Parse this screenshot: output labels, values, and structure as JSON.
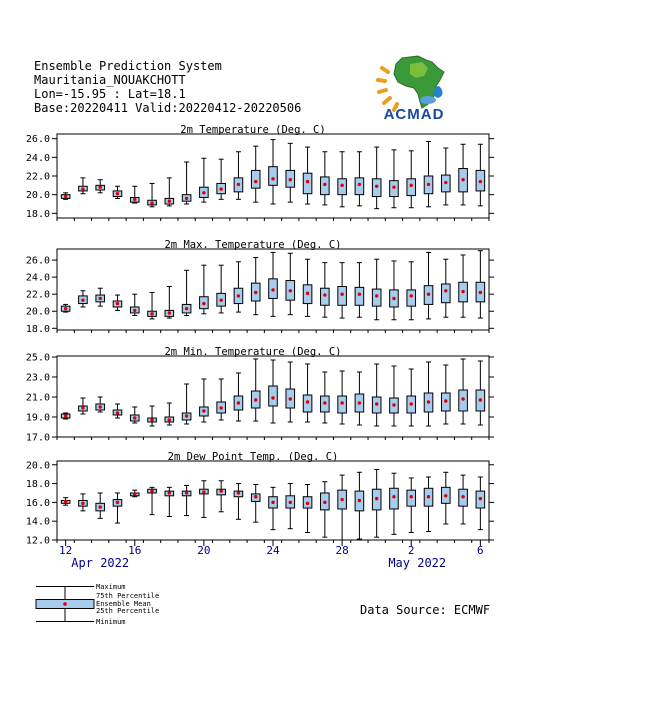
{
  "header": {
    "line1": "Ensemble Prediction System",
    "line2": "Mauritania_NOUAKCHOTT",
    "line3": "Lon=-15.95 : Lat=18.1",
    "line4": "Base:20220411 Valid:20220412-20220506"
  },
  "logo_text": "ACMAD",
  "source": "Data Source: ECMWF",
  "x_axis": {
    "tick_labels": [
      "12",
      "16",
      "20",
      "24",
      "28",
      "2",
      "6"
    ],
    "month_labels": [
      "Apr 2022",
      "May 2022"
    ]
  },
  "legend": {
    "items": [
      "Maximum",
      "75th Percentile",
      "Ensemble Mean",
      "25th Percentile",
      "Minimum"
    ]
  },
  "colors": {
    "box_fill": "#a8ccee",
    "mean": "#dd0000",
    "axis_labels": "#00008b"
  },
  "chart_data": [
    {
      "type": "box",
      "title": "2m Temperature (Deg. C)",
      "yticks": [
        18.0,
        20.0,
        22.0,
        24.0,
        26.0
      ],
      "ylim": [
        17.5,
        26.5
      ],
      "days": [
        "Apr 12",
        "Apr 13",
        "Apr 14",
        "Apr 15",
        "Apr 16",
        "Apr 17",
        "Apr 18",
        "Apr 19",
        "Apr 20",
        "Apr 21",
        "Apr 22",
        "Apr 23",
        "Apr 24",
        "Apr 25",
        "Apr 26",
        "Apr 27",
        "Apr 28",
        "Apr 29",
        "Apr 30",
        "May 1",
        "May 2",
        "May 3",
        "May 4",
        "May 5",
        "May 6"
      ],
      "min": [
        19.5,
        20.1,
        20.2,
        19.6,
        19.1,
        18.7,
        18.8,
        19.0,
        19.2,
        19.5,
        19.5,
        19.2,
        19.0,
        19.2,
        19.0,
        18.9,
        18.7,
        18.8,
        18.5,
        18.6,
        18.6,
        18.7,
        18.9,
        18.9,
        18.8
      ],
      "q25": [
        19.6,
        20.4,
        20.5,
        19.8,
        19.2,
        18.9,
        19.0,
        19.3,
        19.7,
        20.1,
        20.3,
        20.7,
        21.0,
        20.8,
        20.1,
        20.0,
        20.0,
        20.0,
        19.8,
        19.8,
        19.9,
        20.1,
        20.3,
        20.3,
        20.4
      ],
      "mean": [
        19.8,
        20.6,
        20.8,
        20.1,
        19.5,
        19.1,
        19.3,
        19.6,
        20.2,
        20.6,
        21.1,
        21.4,
        21.7,
        21.6,
        21.4,
        21.1,
        21.0,
        21.1,
        20.9,
        20.8,
        21.0,
        21.1,
        21.3,
        21.6,
        21.4
      ],
      "q75": [
        20.0,
        20.9,
        21.0,
        20.4,
        19.7,
        19.4,
        19.6,
        20.0,
        20.8,
        21.2,
        21.8,
        22.6,
        23.0,
        22.6,
        22.3,
        21.9,
        21.7,
        21.8,
        21.7,
        21.5,
        21.7,
        22.0,
        22.1,
        22.8,
        22.6
      ],
      "max": [
        20.2,
        21.8,
        21.6,
        20.9,
        20.9,
        21.2,
        21.8,
        23.5,
        23.9,
        23.8,
        24.6,
        25.2,
        25.9,
        25.5,
        25.1,
        24.6,
        24.6,
        24.6,
        25.1,
        24.8,
        24.7,
        25.7,
        25.0,
        25.4,
        25.4
      ]
    },
    {
      "type": "box",
      "title": "2m Max. Temperature (Deg. C)",
      "yticks": [
        18.0,
        20.0,
        22.0,
        24.0,
        26.0
      ],
      "ylim": [
        17.8,
        27.3
      ],
      "days": [
        "Apr 12",
        "Apr 13",
        "Apr 14",
        "Apr 15",
        "Apr 16",
        "Apr 17",
        "Apr 18",
        "Apr 19",
        "Apr 20",
        "Apr 21",
        "Apr 22",
        "Apr 23",
        "Apr 24",
        "Apr 25",
        "Apr 26",
        "Apr 27",
        "Apr 28",
        "Apr 29",
        "Apr 30",
        "May 1",
        "May 2",
        "May 3",
        "May 4",
        "May 5",
        "May 6"
      ],
      "min": [
        19.9,
        20.5,
        20.6,
        20.1,
        19.5,
        19.1,
        19.2,
        19.5,
        19.7,
        19.8,
        19.9,
        19.6,
        19.4,
        19.6,
        19.4,
        19.3,
        19.2,
        19.3,
        19.0,
        19.0,
        19.0,
        19.1,
        19.3,
        19.3,
        19.2
      ],
      "q25": [
        20.0,
        20.9,
        21.1,
        20.5,
        19.8,
        19.4,
        19.4,
        19.8,
        20.3,
        20.6,
        20.9,
        21.2,
        21.5,
        21.3,
        20.9,
        20.7,
        20.7,
        20.7,
        20.6,
        20.5,
        20.6,
        20.8,
        21.0,
        21.1,
        21.1
      ],
      "mean": [
        20.3,
        21.3,
        21.5,
        20.9,
        20.1,
        19.7,
        19.8,
        20.3,
        20.9,
        21.3,
        21.8,
        22.2,
        22.5,
        22.4,
        22.1,
        21.9,
        22.0,
        22.0,
        21.8,
        21.5,
        21.8,
        22.0,
        22.4,
        22.3,
        22.2
      ],
      "q75": [
        20.6,
        21.8,
        21.9,
        21.2,
        20.5,
        20.0,
        20.1,
        20.8,
        21.7,
        22.1,
        22.7,
        23.3,
        23.8,
        23.6,
        23.1,
        22.7,
        22.9,
        22.8,
        22.6,
        22.5,
        22.5,
        23.0,
        23.2,
        23.4,
        23.4
      ],
      "max": [
        20.8,
        22.4,
        22.7,
        21.9,
        22.0,
        22.2,
        22.9,
        24.8,
        25.4,
        25.4,
        25.8,
        26.3,
        26.9,
        26.8,
        26.1,
        25.7,
        25.7,
        25.7,
        26.1,
        25.9,
        25.8,
        26.9,
        26.1,
        26.6,
        27.1
      ]
    },
    {
      "type": "box",
      "title": "2m Min. Temperature (Deg. C)",
      "yticks": [
        17.0,
        19.0,
        21.0,
        23.0,
        25.0
      ],
      "ylim": [
        17.0,
        25.1
      ],
      "days": [
        "Apr 12",
        "Apr 13",
        "Apr 14",
        "Apr 15",
        "Apr 16",
        "Apr 17",
        "Apr 18",
        "Apr 19",
        "Apr 20",
        "Apr 21",
        "Apr 22",
        "Apr 23",
        "Apr 24",
        "Apr 25",
        "Apr 26",
        "Apr 27",
        "Apr 28",
        "Apr 29",
        "Apr 30",
        "May 1",
        "May 2",
        "May 3",
        "May 4",
        "May 5",
        "May 6"
      ],
      "min": [
        18.8,
        19.3,
        19.5,
        18.9,
        18.4,
        18.1,
        18.2,
        18.3,
        18.5,
        18.7,
        18.6,
        18.6,
        18.4,
        18.5,
        18.5,
        18.4,
        18.3,
        18.2,
        18.1,
        18.1,
        18.1,
        18.1,
        18.3,
        18.3,
        18.2
      ],
      "q25": [
        18.9,
        19.6,
        19.7,
        19.2,
        18.6,
        18.5,
        18.5,
        18.7,
        19.1,
        19.4,
        19.7,
        19.9,
        20.1,
        19.9,
        19.5,
        19.5,
        19.4,
        19.5,
        19.4,
        19.4,
        19.4,
        19.5,
        19.6,
        19.6,
        19.6
      ],
      "mean": [
        19.1,
        19.9,
        20.0,
        19.4,
        18.9,
        18.7,
        18.7,
        19.1,
        19.6,
        19.9,
        20.4,
        20.7,
        20.9,
        20.8,
        20.5,
        20.4,
        20.4,
        20.4,
        20.3,
        20.2,
        20.3,
        20.5,
        20.6,
        20.8,
        20.7
      ],
      "q75": [
        19.3,
        20.1,
        20.3,
        19.7,
        19.2,
        18.9,
        19.0,
        19.4,
        20.0,
        20.5,
        21.1,
        21.6,
        22.1,
        21.8,
        21.2,
        21.1,
        21.1,
        21.3,
        21.0,
        20.9,
        21.1,
        21.4,
        21.4,
        21.7,
        21.7
      ],
      "max": [
        19.4,
        20.9,
        21.0,
        20.3,
        20.0,
        20.1,
        20.4,
        22.3,
        22.8,
        22.8,
        23.4,
        24.8,
        24.7,
        24.5,
        24.3,
        23.5,
        23.6,
        23.5,
        24.3,
        24.1,
        23.8,
        24.5,
        24.2,
        24.8,
        24.6
      ]
    },
    {
      "type": "box",
      "title": "2m Dew Point Temp. (Deg. C)",
      "yticks": [
        12.0,
        14.0,
        16.0,
        18.0,
        20.0
      ],
      "ylim": [
        12.0,
        20.4
      ],
      "days": [
        "Apr 12",
        "Apr 13",
        "Apr 14",
        "Apr 15",
        "Apr 16",
        "Apr 17",
        "Apr 18",
        "Apr 19",
        "Apr 20",
        "Apr 21",
        "Apr 22",
        "Apr 23",
        "Apr 24",
        "Apr 25",
        "Apr 26",
        "Apr 27",
        "Apr 28",
        "Apr 29",
        "Apr 30",
        "May 1",
        "May 2",
        "May 3",
        "May 4",
        "May 5",
        "May 6"
      ],
      "min": [
        15.7,
        15.1,
        14.3,
        13.8,
        16.6,
        14.7,
        14.5,
        14.6,
        14.4,
        15.0,
        14.2,
        13.9,
        13.1,
        13.2,
        12.8,
        12.3,
        12.0,
        12.1,
        12.3,
        12.6,
        12.8,
        12.9,
        13.7,
        13.7,
        13.1
      ],
      "q25": [
        15.9,
        15.6,
        15.1,
        15.6,
        16.7,
        17.0,
        16.7,
        16.7,
        16.9,
        16.8,
        16.6,
        16.1,
        15.4,
        15.4,
        15.4,
        15.2,
        15.3,
        15.1,
        15.2,
        15.3,
        15.6,
        15.6,
        15.9,
        15.6,
        15.4
      ],
      "mean": [
        16.1,
        15.9,
        15.5,
        16.0,
        16.9,
        17.2,
        17.0,
        17.0,
        17.1,
        17.2,
        17.0,
        16.6,
        16.0,
        16.0,
        15.9,
        16.0,
        16.3,
        16.2,
        16.4,
        16.6,
        16.6,
        16.6,
        16.7,
        16.6,
        16.4
      ],
      "q75": [
        16.2,
        16.2,
        15.9,
        16.3,
        17.0,
        17.4,
        17.2,
        17.2,
        17.4,
        17.4,
        17.2,
        16.9,
        16.6,
        16.7,
        16.6,
        17.0,
        17.3,
        17.2,
        17.4,
        17.5,
        17.3,
        17.5,
        17.6,
        17.4,
        17.2
      ],
      "max": [
        16.5,
        16.9,
        17.0,
        17.0,
        17.3,
        17.6,
        17.6,
        17.8,
        18.3,
        18.3,
        18.0,
        17.9,
        17.6,
        18.0,
        17.9,
        18.2,
        18.9,
        19.2,
        19.5,
        19.1,
        18.6,
        18.7,
        19.2,
        18.9,
        18.7
      ]
    }
  ]
}
